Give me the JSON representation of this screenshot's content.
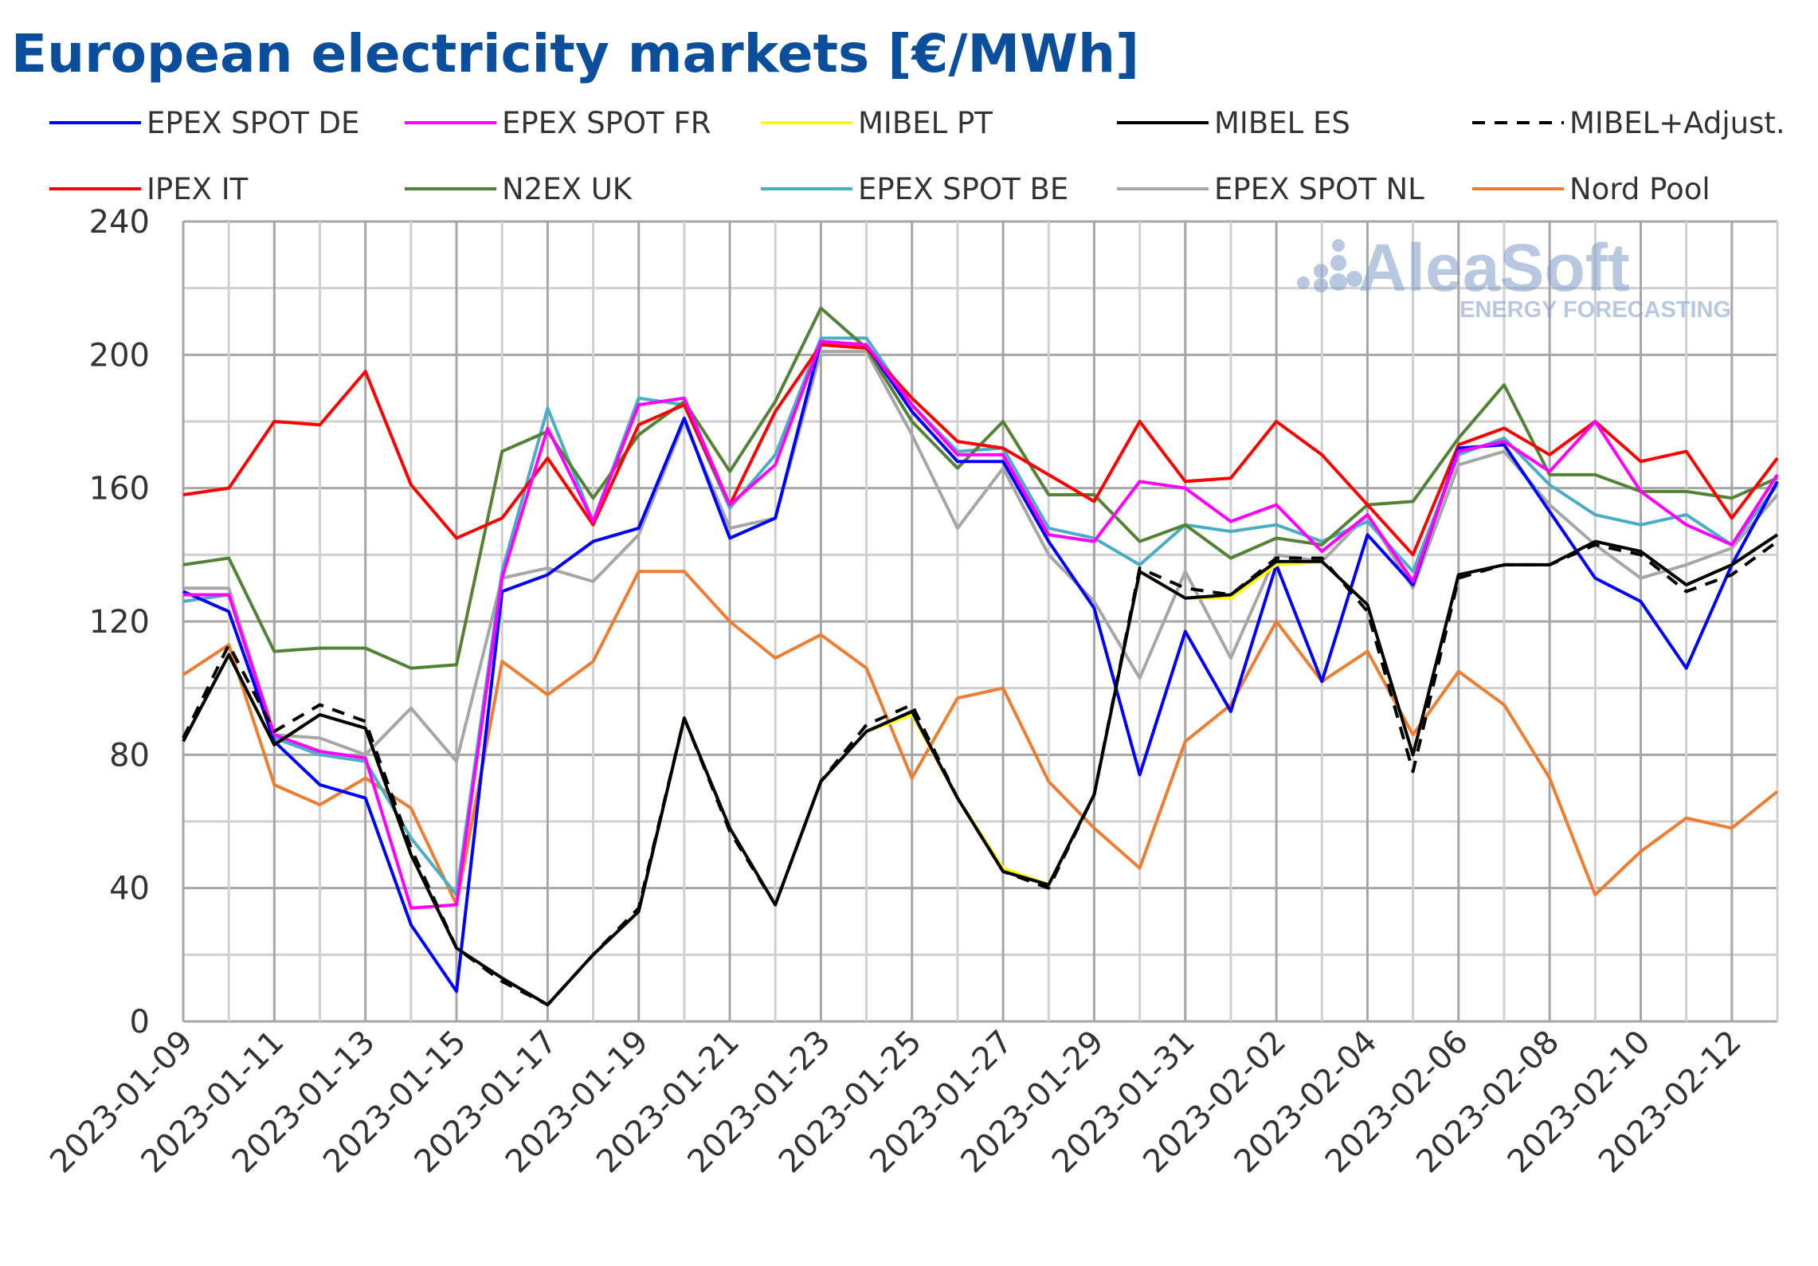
{
  "chart_data": {
    "type": "line",
    "title": "European electricity markets [€/MWh]",
    "xlabel": "",
    "ylabel": "",
    "ylim": [
      0,
      240
    ],
    "yticks": [
      0,
      40,
      80,
      120,
      160,
      200,
      240
    ],
    "grid": true,
    "legend_placement": "top",
    "watermark": {
      "name": "AleaSoft",
      "tagline": "ENERGY FORECASTING"
    },
    "x": [
      "2023-01-09",
      "2023-01-10",
      "2023-01-11",
      "2023-01-12",
      "2023-01-13",
      "2023-01-14",
      "2023-01-15",
      "2023-01-16",
      "2023-01-17",
      "2023-01-18",
      "2023-01-19",
      "2023-01-20",
      "2023-01-21",
      "2023-01-22",
      "2023-01-23",
      "2023-01-24",
      "2023-01-25",
      "2023-01-26",
      "2023-01-27",
      "2023-01-28",
      "2023-01-29",
      "2023-01-30",
      "2023-01-31",
      "2023-02-01",
      "2023-02-02",
      "2023-02-03",
      "2023-02-04",
      "2023-02-05",
      "2023-02-06",
      "2023-02-07",
      "2023-02-08",
      "2023-02-09",
      "2023-02-10",
      "2023-02-11",
      "2023-02-12",
      "2023-02-13"
    ],
    "xtick_labels": [
      "2023-01-09",
      "2023-01-11",
      "2023-01-13",
      "2023-01-15",
      "2023-01-17",
      "2023-01-19",
      "2023-01-21",
      "2023-01-23",
      "2023-01-25",
      "2023-01-27",
      "2023-01-29",
      "2023-01-31",
      "2023-02-02",
      "2023-02-04",
      "2023-02-06",
      "2023-02-08",
      "2023-02-10",
      "2023-02-12"
    ],
    "series": [
      {
        "name": "EPEX SPOT DE",
        "color": "#0000ff",
        "dash": false,
        "values": [
          129,
          123,
          84,
          71,
          67,
          29,
          9,
          129,
          134,
          144,
          148,
          181,
          145,
          151,
          204,
          203,
          183,
          168,
          168,
          144,
          124,
          74,
          117,
          93,
          137,
          102,
          146,
          131,
          172,
          173,
          153,
          133,
          126,
          106,
          137,
          162
        ]
      },
      {
        "name": "EPEX SPOT FR",
        "color": "#ff00ff",
        "dash": false,
        "values": [
          128,
          128,
          86,
          81,
          79,
          34,
          35,
          133,
          178,
          150,
          185,
          187,
          155,
          167,
          204,
          203,
          185,
          170,
          170,
          146,
          144,
          162,
          160,
          150,
          155,
          141,
          152,
          132,
          171,
          174,
          165,
          180,
          159,
          149,
          143,
          164
        ]
      },
      {
        "name": "MIBEL PT",
        "color": "#ffff00",
        "dash": false,
        "values": [
          84,
          110,
          83,
          92,
          88,
          50,
          22,
          13,
          5,
          20,
          33,
          91,
          58,
          35,
          72,
          87,
          92,
          67,
          46,
          41,
          68,
          135,
          127,
          127,
          137,
          138,
          125,
          80,
          134,
          137,
          137,
          144,
          141,
          131,
          137,
          146
        ]
      },
      {
        "name": "MIBEL ES",
        "color": "#000000",
        "dash": false,
        "values": [
          84,
          110,
          83,
          92,
          88,
          50,
          22,
          13,
          5,
          20,
          33,
          91,
          58,
          35,
          72,
          87,
          93,
          67,
          45,
          41,
          68,
          135,
          127,
          128,
          138,
          138,
          125,
          80,
          134,
          137,
          137,
          144,
          141,
          131,
          137,
          146
        ]
      },
      {
        "name": "MIBEL+Adjust.",
        "color": "#000000",
        "dash": true,
        "values": [
          85,
          113,
          87,
          95,
          90,
          52,
          22,
          12,
          5,
          20,
          34,
          91,
          57,
          35,
          72,
          89,
          95,
          67,
          45,
          40,
          68,
          136,
          130,
          128,
          139,
          139,
          123,
          75,
          133,
          137,
          137,
          143,
          140,
          129,
          134,
          144
        ]
      },
      {
        "name": "IPEX IT",
        "color": "#ff0000",
        "dash": false,
        "values": [
          158,
          160,
          180,
          179,
          195,
          161,
          145,
          151,
          169,
          149,
          179,
          185,
          155,
          183,
          203,
          202,
          187,
          174,
          172,
          164,
          156,
          180,
          162,
          163,
          180,
          170,
          155,
          140,
          173,
          178,
          170,
          180,
          168,
          171,
          151,
          169
        ]
      },
      {
        "name": "N2EX UK",
        "color": "#548235",
        "dash": false,
        "values": [
          137,
          139,
          111,
          112,
          112,
          106,
          107,
          171,
          177,
          157,
          176,
          186,
          165,
          186,
          214,
          202,
          180,
          166,
          180,
          158,
          158,
          144,
          149,
          139,
          145,
          143,
          155,
          156,
          175,
          191,
          164,
          164,
          159,
          159,
          157,
          163
        ]
      },
      {
        "name": "EPEX SPOT BE",
        "color": "#4bacc6",
        "dash": false,
        "values": [
          126,
          128,
          85,
          80,
          78,
          55,
          38,
          135,
          184,
          150,
          187,
          185,
          154,
          170,
          205,
          205,
          185,
          171,
          172,
          148,
          145,
          137,
          149,
          147,
          149,
          144,
          150,
          135,
          170,
          175,
          161,
          152,
          149,
          152,
          143,
          161
        ]
      },
      {
        "name": "EPEX SPOT NL",
        "color": "#a6a6a6",
        "dash": false,
        "values": [
          130,
          130,
          86,
          85,
          80,
          94,
          78,
          133,
          136,
          132,
          146,
          180,
          148,
          151,
          201,
          201,
          176,
          148,
          166,
          140,
          126,
          103,
          135,
          109,
          140,
          138,
          152,
          130,
          167,
          171,
          155,
          143,
          133,
          137,
          142,
          158
        ]
      },
      {
        "name": "Nord Pool",
        "color": "#ed7d31",
        "dash": false,
        "values": [
          104,
          113,
          71,
          65,
          73,
          64,
          35,
          108,
          98,
          108,
          135,
          135,
          120,
          109,
          116,
          106,
          73,
          97,
          100,
          72,
          58,
          46,
          84,
          95,
          120,
          102,
          111,
          86,
          105,
          95,
          73,
          38,
          51,
          61,
          58,
          69
        ]
      }
    ]
  }
}
